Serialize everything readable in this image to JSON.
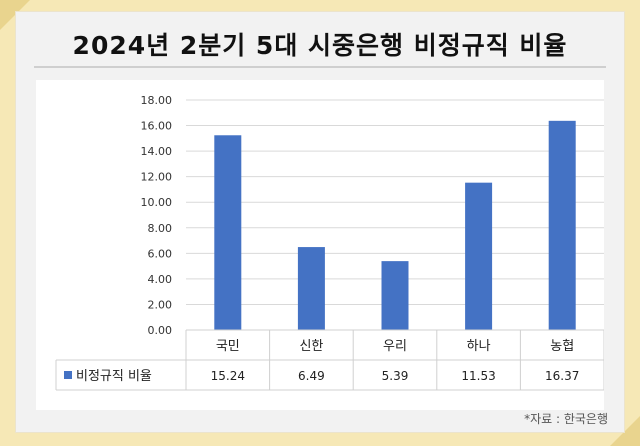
{
  "title": "2024년 2분기 5대 시중은행 비정규직 비율",
  "source": "*자료 : 한국은행",
  "colors": {
    "bar": "#4472c4",
    "background": "#f6e8b6",
    "card": "#f2f2f2"
  },
  "chart_data": {
    "type": "bar",
    "title": "",
    "xlabel": "",
    "ylabel": "",
    "categories": [
      "국민",
      "신한",
      "우리",
      "하나",
      "농협"
    ],
    "series": [
      {
        "name": "비정규직 비율",
        "values": [
          15.24,
          6.49,
          5.39,
          11.53,
          16.37
        ]
      }
    ],
    "value_labels": [
      "15.24",
      "6.49",
      "5.39",
      "11.53",
      "16.37"
    ],
    "ylim": [
      0,
      18
    ],
    "yticks": [
      "0.00",
      "2.00",
      "4.00",
      "6.00",
      "8.00",
      "10.00",
      "12.00",
      "14.00",
      "16.00",
      "18.00"
    ],
    "grid": true,
    "legend": "data-table-left"
  }
}
